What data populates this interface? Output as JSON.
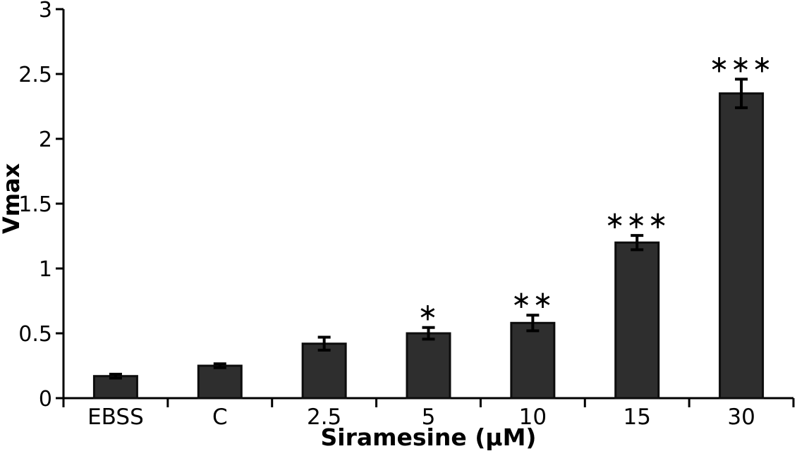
{
  "chart_data": {
    "type": "bar",
    "title": "",
    "xlabel": "Siramesine (μM)",
    "ylabel": "Vmax",
    "categories": [
      "EBSS",
      "C",
      "2.5",
      "5",
      "10",
      "15",
      "30"
    ],
    "values": [
      0.17,
      0.25,
      0.42,
      0.5,
      0.58,
      1.2,
      2.35
    ],
    "errors": [
      0.015,
      0.015,
      0.05,
      0.045,
      0.06,
      0.055,
      0.11
    ],
    "significance": [
      "",
      "",
      "",
      "*",
      "**",
      "***",
      "***"
    ],
    "ylim": [
      0,
      3
    ],
    "yticks": [
      0,
      0.5,
      1,
      1.5,
      2,
      2.5,
      3
    ],
    "ytick_labels": [
      "0",
      "0.5",
      "1",
      "1.5",
      "2",
      "2.5",
      "3"
    ],
    "grid": false,
    "legend": "none",
    "bar_color": "#2e2e2e",
    "bar_border_color": "#0d0d0d",
    "axis_color": "#000000",
    "error_bar_color": "#000000"
  }
}
